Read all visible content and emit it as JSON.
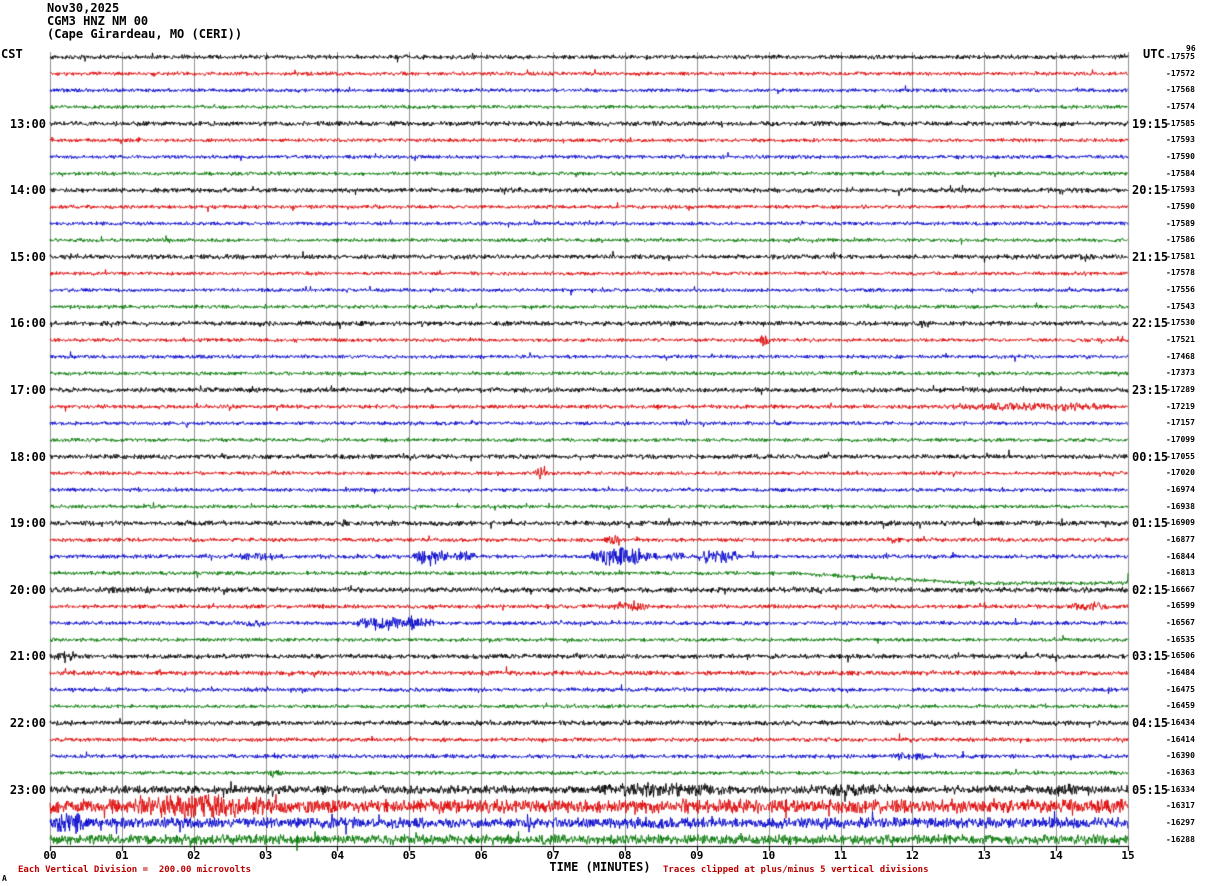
{
  "header": {
    "date": "Nov30,2025",
    "station": "CGM3 HNZ NM 00",
    "location": "(Cape Girardeau, MO (CERI))"
  },
  "axes": {
    "left_label": "CST",
    "right_label": "UTC",
    "right_top_note": "96",
    "x_title": "TIME (MINUTES)",
    "x_ticks": [
      "00",
      "01",
      "02",
      "03",
      "04",
      "05",
      "06",
      "07",
      "08",
      "09",
      "10",
      "11",
      "12",
      "13",
      "14",
      "15"
    ]
  },
  "footer": {
    "scale_note": "Each Vertical Division =  200.00 microvolts",
    "clip_note": "Traces clipped at plus/minus 5 vertical divisions",
    "corner_mark": "A"
  },
  "chart_data": {
    "type": "line",
    "subtype": "helicorder-seismogram",
    "minutes_per_line": 15,
    "x_range_minutes": [
      0,
      15
    ],
    "grid": true,
    "colors": {
      "black": "#000000",
      "red": "#dd0000",
      "blue": "#0000cc",
      "green": "#007700"
    },
    "traces": [
      {
        "color": "black",
        "right_value": "-17575",
        "amp": 1.4
      },
      {
        "color": "red",
        "right_value": "-17572",
        "amp": 1.2
      },
      {
        "color": "blue",
        "right_value": "-17568",
        "amp": 1.2
      },
      {
        "color": "green",
        "right_value": "-17574",
        "amp": 1.2
      },
      {
        "color": "black",
        "right_value": "-17585",
        "amp": 1.5,
        "left_label": "13:00",
        "right_label": "19:15"
      },
      {
        "color": "red",
        "right_value": "-17593",
        "amp": 1.2
      },
      {
        "color": "blue",
        "right_value": "-17590",
        "amp": 1.2
      },
      {
        "color": "green",
        "right_value": "-17584",
        "amp": 1.2
      },
      {
        "color": "black",
        "right_value": "-17593",
        "amp": 1.5,
        "left_label": "14:00",
        "right_label": "20:15"
      },
      {
        "color": "red",
        "right_value": "-17590",
        "amp": 1.2
      },
      {
        "color": "blue",
        "right_value": "-17589",
        "amp": 1.2
      },
      {
        "color": "green",
        "right_value": "-17586",
        "amp": 1.2
      },
      {
        "color": "black",
        "right_value": "-17581",
        "amp": 1.5,
        "left_label": "15:00",
        "right_label": "21:15",
        "events": [
          [
            14.3,
            14.55,
            3
          ]
        ]
      },
      {
        "color": "red",
        "right_value": "-17578",
        "amp": 1.2
      },
      {
        "color": "blue",
        "right_value": "-17556",
        "amp": 1.2
      },
      {
        "color": "green",
        "right_value": "-17543",
        "amp": 1.2
      },
      {
        "color": "black",
        "right_value": "-17530",
        "amp": 1.5,
        "left_label": "16:00",
        "right_label": "22:15",
        "events": [
          [
            12.05,
            12.3,
            3
          ]
        ]
      },
      {
        "color": "red",
        "right_value": "-17521",
        "amp": 1.2,
        "events": [
          [
            9.85,
            10.05,
            4
          ]
        ]
      },
      {
        "color": "blue",
        "right_value": "-17468",
        "amp": 1.2
      },
      {
        "color": "green",
        "right_value": "-17373",
        "amp": 1.2
      },
      {
        "color": "black",
        "right_value": "-17289",
        "amp": 1.6,
        "left_label": "17:00",
        "right_label": "23:15"
      },
      {
        "color": "red",
        "right_value": "-17219",
        "amp": 1.3,
        "events": [
          [
            12.4,
            14.9,
            3
          ]
        ]
      },
      {
        "color": "blue",
        "right_value": "-17157",
        "amp": 1.2
      },
      {
        "color": "green",
        "right_value": "-17099",
        "amp": 1.2,
        "events": [
          [
            4.55,
            4.85,
            2
          ]
        ]
      },
      {
        "color": "black",
        "right_value": "-17055",
        "amp": 1.5,
        "left_label": "18:00",
        "right_label": "00:15"
      },
      {
        "color": "red",
        "right_value": "-17020",
        "amp": 1.2,
        "events": [
          [
            6.75,
            6.95,
            4.5
          ]
        ]
      },
      {
        "color": "blue",
        "right_value": "-16974",
        "amp": 1.2
      },
      {
        "color": "green",
        "right_value": "-16938",
        "amp": 1.2
      },
      {
        "color": "black",
        "right_value": "-16909",
        "amp": 1.6,
        "left_label": "19:00",
        "right_label": "01:15",
        "events": [
          [
            4,
            4.2,
            2.5
          ]
        ]
      },
      {
        "color": "red",
        "right_value": "-16877",
        "amp": 1.3,
        "events": [
          [
            7.7,
            7.95,
            3
          ],
          [
            11.65,
            11.9,
            3
          ]
        ]
      },
      {
        "color": "blue",
        "right_value": "-16844",
        "amp": 1.3,
        "events": [
          [
            2.4,
            3.35,
            2.5
          ],
          [
            5.05,
            5.55,
            5.5
          ],
          [
            5.6,
            5.95,
            4
          ],
          [
            7.5,
            8.45,
            6
          ],
          [
            8.55,
            8.85,
            3.5
          ],
          [
            9,
            9.6,
            5
          ]
        ]
      },
      {
        "color": "green",
        "right_value": "-16813",
        "amp": 1.3,
        "drift": [
          [
            0,
            0
          ],
          [
            10.3,
            0
          ],
          [
            12.9,
            10
          ],
          [
            15,
            10
          ]
        ]
      },
      {
        "color": "black",
        "right_value": "-16667",
        "amp": 1.7,
        "left_label": "20:00",
        "right_label": "02:15",
        "events": [
          [
            0,
            2.2,
            2.2
          ]
        ]
      },
      {
        "color": "red",
        "right_value": "-16599",
        "amp": 1.3,
        "events": [
          [
            7.75,
            8.35,
            3.5
          ],
          [
            14.15,
            14.8,
            3.5
          ]
        ]
      },
      {
        "color": "blue",
        "right_value": "-16567",
        "amp": 1.3,
        "events": [
          [
            2.65,
            3.05,
            2.5
          ],
          [
            4.25,
            5.35,
            5
          ]
        ]
      },
      {
        "color": "green",
        "right_value": "-16535",
        "amp": 1.2
      },
      {
        "color": "black",
        "right_value": "-16506",
        "amp": 1.5,
        "left_label": "21:00",
        "right_label": "03:15",
        "events": [
          [
            0.1,
            0.35,
            5
          ]
        ]
      },
      {
        "color": "red",
        "right_value": "-16484",
        "amp": 1.5
      },
      {
        "color": "blue",
        "right_value": "-16475",
        "amp": 1.3
      },
      {
        "color": "green",
        "right_value": "-16459",
        "amp": 1.2
      },
      {
        "color": "black",
        "right_value": "-16434",
        "amp": 1.6,
        "left_label": "22:00",
        "right_label": "04:15"
      },
      {
        "color": "red",
        "right_value": "-16414",
        "amp": 1.3
      },
      {
        "color": "blue",
        "right_value": "-16390",
        "amp": 1.3,
        "events": [
          [
            11.7,
            12.2,
            3.5
          ]
        ]
      },
      {
        "color": "green",
        "right_value": "-16363",
        "amp": 1.2,
        "events": [
          [
            3,
            3.25,
            3
          ]
        ]
      },
      {
        "color": "black",
        "right_value": "-16334",
        "amp": 2.6,
        "left_label": "23:00",
        "right_label": "05:15",
        "events": [
          [
            7.4,
            9.7,
            4.5
          ],
          [
            10.4,
            11.7,
            4.5
          ],
          [
            13.6,
            14.5,
            4
          ]
        ]
      },
      {
        "color": "red",
        "right_value": "-16317",
        "amp": 4.5,
        "events": [
          [
            0.8,
            3.3,
            8
          ]
        ]
      },
      {
        "color": "blue",
        "right_value": "-16297",
        "amp": 3.5,
        "events": [
          [
            0,
            0.6,
            7
          ]
        ]
      },
      {
        "color": "green",
        "right_value": "-16288",
        "amp": 3.2
      }
    ]
  }
}
